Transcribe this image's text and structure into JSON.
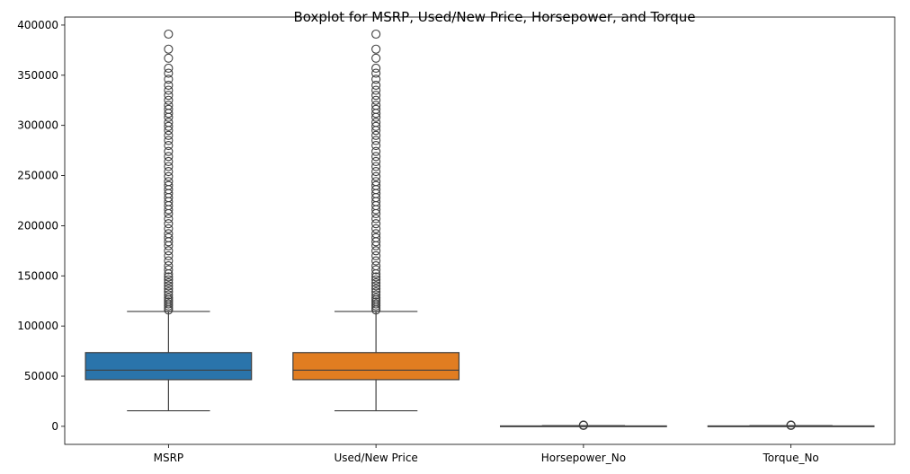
{
  "chart_data": {
    "type": "box",
    "title": "Boxplot for MSRP, Used/New Price, Horsepower, and Torque",
    "xlabel": "",
    "ylabel": "",
    "ylim": [
      -18000,
      408000
    ],
    "yticks": [
      0,
      50000,
      100000,
      150000,
      200000,
      250000,
      300000,
      350000,
      400000
    ],
    "ytick_labels": [
      "0",
      "50000",
      "100000",
      "150000",
      "200000",
      "250000",
      "300000",
      "350000",
      "400000"
    ],
    "grid": false,
    "legend": "none",
    "categories": [
      "MSRP",
      "Used/New Price",
      "Horsepower_No",
      "Torque_No"
    ],
    "boxes": [
      {
        "label": "MSRP",
        "color": "#2a74ab",
        "whisker_low": 15500,
        "q1": 46500,
        "median": 56000,
        "q3": 73500,
        "whisker_high": 114500,
        "outliers": [
          116000,
          118000,
          120000,
          122000,
          124000,
          126000,
          128000,
          131000,
          134000,
          137000,
          140000,
          143000,
          146000,
          149000,
          152000,
          156000,
          160000,
          165000,
          170000,
          175000,
          180000,
          184000,
          188000,
          192000,
          197000,
          202000,
          207000,
          212000,
          216000,
          220000,
          224000,
          228000,
          232000,
          236000,
          240000,
          244000,
          249000,
          254000,
          259000,
          264000,
          269000,
          274000,
          280000,
          285000,
          290000,
          295000,
          299000,
          303000,
          308000,
          312000,
          316000,
          320000,
          325000,
          330000,
          335000,
          340000,
          346000,
          352000,
          357000,
          367000,
          376000,
          391000
        ]
      },
      {
        "label": "Used/New Price",
        "color": "#e17d21",
        "whisker_low": 15500,
        "q1": 46500,
        "median": 56000,
        "q3": 73500,
        "whisker_high": 114500,
        "outliers": [
          116000,
          118000,
          120000,
          122000,
          124000,
          126000,
          128000,
          131000,
          134000,
          137000,
          140000,
          143000,
          146000,
          149000,
          152000,
          156000,
          160000,
          165000,
          170000,
          175000,
          180000,
          184000,
          188000,
          192000,
          197000,
          202000,
          207000,
          212000,
          216000,
          220000,
          224000,
          228000,
          232000,
          236000,
          240000,
          244000,
          249000,
          254000,
          259000,
          264000,
          269000,
          274000,
          280000,
          285000,
          290000,
          295000,
          299000,
          303000,
          308000,
          312000,
          316000,
          320000,
          325000,
          330000,
          335000,
          340000,
          346000,
          352000,
          357000,
          367000,
          376000,
          391000
        ]
      },
      {
        "label": "Horsepower_No",
        "color": "#3b923b",
        "whisker_low": 0,
        "q1": 200,
        "median": 300,
        "q3": 400,
        "whisker_high": 700,
        "outliers": [
          900,
          1100,
          1300
        ]
      },
      {
        "label": "Torque_No",
        "color": "#c23b3b",
        "whisker_low": 0,
        "q1": 200,
        "median": 300,
        "q3": 400,
        "whisker_high": 700,
        "outliers": [
          900,
          1100,
          1300
        ]
      }
    ]
  }
}
